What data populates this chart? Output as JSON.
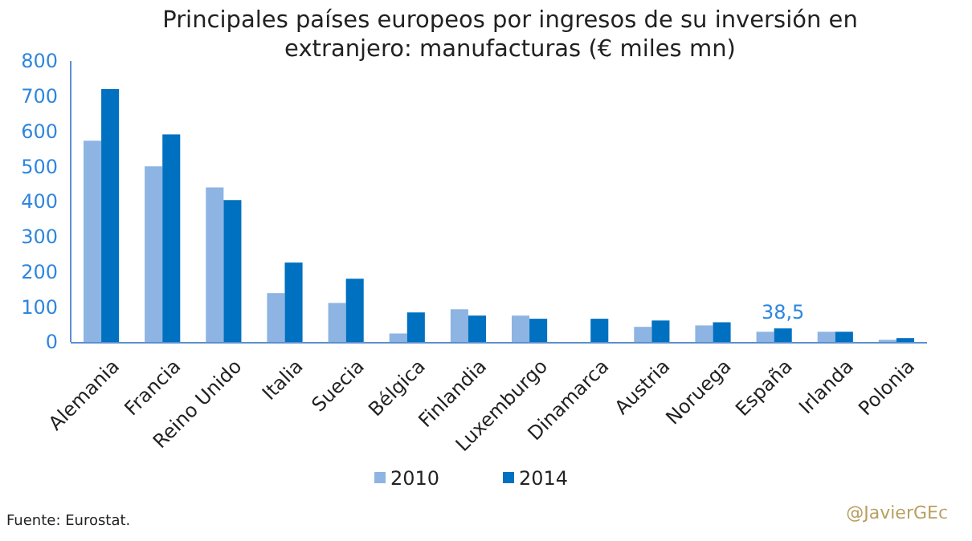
{
  "chart_data": {
    "type": "bar",
    "title": "Principales países europeos por ingresos de su inversión en extranjero: manufacturas (€ miles mn)",
    "categories": [
      "Alemania",
      "Francia",
      "Reino Unido",
      "Italia",
      "Suecia",
      "Bélgica",
      "Finlandia",
      "Luxemburgo",
      "Dinamarca",
      "Austria",
      "Noruega",
      "España",
      "Irlanda",
      "Polonia"
    ],
    "series": [
      {
        "name": "2010",
        "color": "#8db4e2",
        "values": [
          573,
          500,
          440,
          139,
          111,
          24,
          93,
          75,
          null,
          43,
          47,
          29,
          29,
          6
        ]
      },
      {
        "name": "2014",
        "color": "#0070c0",
        "values": [
          720,
          591,
          404,
          226,
          180,
          84,
          75,
          66,
          66,
          61,
          56,
          38.5,
          29,
          11
        ],
        "value_labels": [
          null,
          null,
          null,
          null,
          null,
          null,
          null,
          null,
          null,
          null,
          null,
          "38,5",
          null,
          null
        ]
      }
    ],
    "ylim": [
      0,
      800
    ],
    "yticks": [
      0,
      100,
      200,
      300,
      400,
      500,
      600,
      700,
      800
    ],
    "grid": false,
    "legend": "bottom",
    "annotations": [
      "Fuente: Eurostat.",
      "@JavierGEc"
    ]
  }
}
